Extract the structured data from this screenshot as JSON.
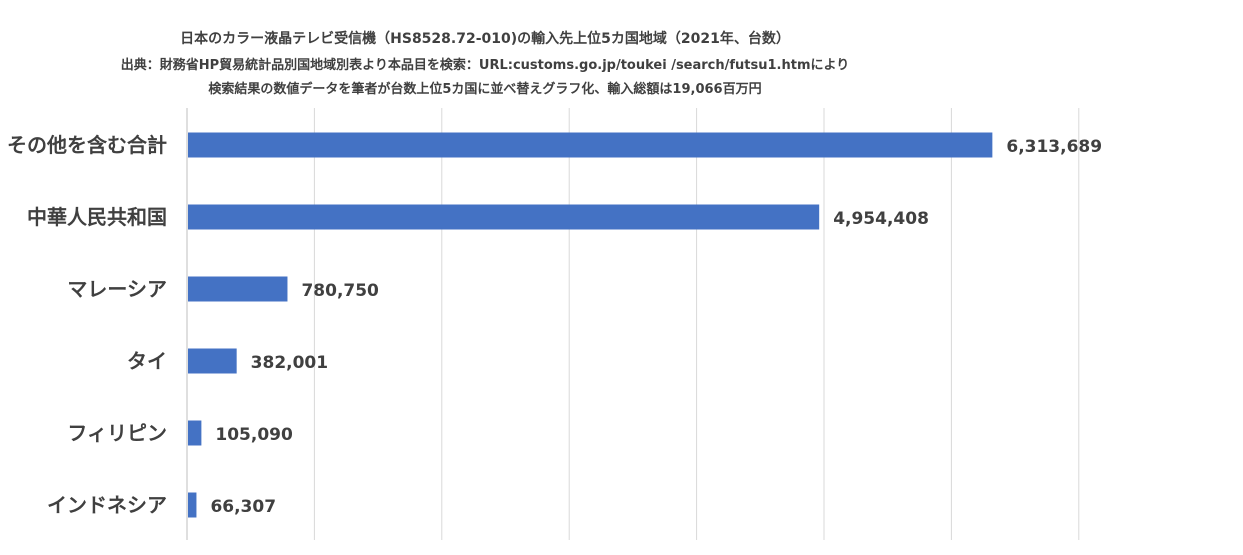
{
  "chart_data": {
    "type": "bar",
    "orientation": "horizontal",
    "title": "日本のカラー液晶テレビ受信機（HS8528.72-010)の輸入先上位5カ国地域（2021年、台数）",
    "subtitle": "出典：財務省HP貿易統計品別国地域別表より本品目を検索：URL:customs.go.jp/toukei /search/futsu1.htmにより",
    "note": "検索結果の数値データを筆者が台数上位5カ国に並べ替えグラフ化、輸入総額は19,066百万円",
    "categories": [
      "その他を含む合計",
      "中華人民共和国",
      "マレーシア",
      "タイ",
      "フィリピン",
      "インドネシア"
    ],
    "values": [
      6313689,
      4954408,
      780750,
      382001,
      105090,
      66307
    ],
    "value_labels": [
      "6,313,689",
      "4,954,408",
      "780,750",
      "382,001",
      "105,090",
      "66,307"
    ],
    "xlim": [
      0,
      7000000
    ],
    "grid": true,
    "bar_color": "#4472C4",
    "gridline_color": "#D9D9D9"
  }
}
